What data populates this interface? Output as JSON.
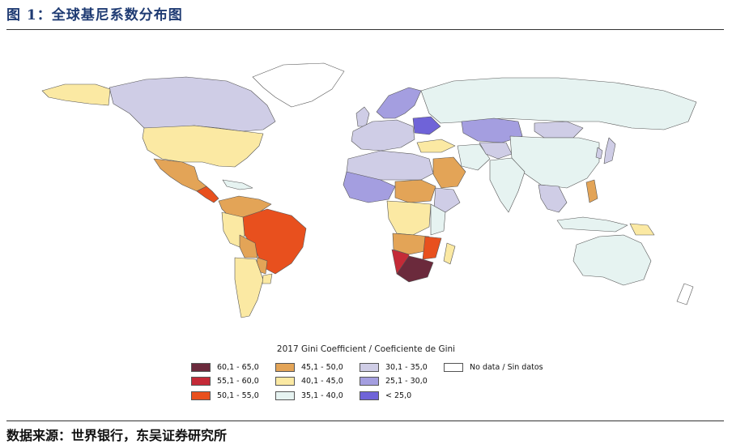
{
  "figure_title": "图 1：全球基尼系数分布图",
  "source_note": "数据来源：世界银行，东吴证券研究所",
  "legend": {
    "title": "2017 Gini Coefficient / Coeficiente de Gini",
    "items": [
      {
        "label": "60,1 - 65,0",
        "color": "#6b2a3c"
      },
      {
        "label": "55,1 - 60,0",
        "color": "#c42a37"
      },
      {
        "label": "50,1 - 55,0",
        "color": "#e8501e"
      },
      {
        "label": "45,1 - 50,0",
        "color": "#e3a457"
      },
      {
        "label": "40,1 - 45,0",
        "color": "#fbe9a3"
      },
      {
        "label": "35,1 - 40,0",
        "color": "#e6f3f1"
      },
      {
        "label": "30,1 - 35,0",
        "color": "#cfcde6"
      },
      {
        "label": "25,1 - 30,0",
        "color": "#a49ee0"
      },
      {
        "label": "< 25,0",
        "color": "#6f63d8"
      },
      {
        "label": "No data / Sin datos",
        "color": "#ffffff"
      }
    ]
  }
}
